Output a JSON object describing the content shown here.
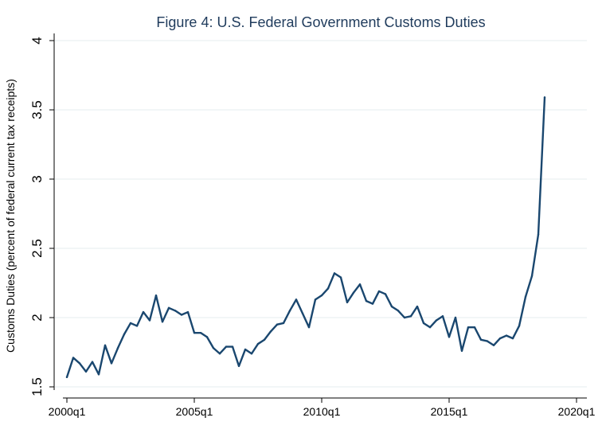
{
  "chart_data": {
    "type": "line",
    "title": "Figure 4: U.S. Federal Government Customs Duties",
    "ylabel": "Customs Duties (percent of federal current tax receipts)",
    "xlabel": "",
    "xlim": [
      "2000q1",
      "2020q1"
    ],
    "ylim": [
      1.5,
      4
    ],
    "xticks": [
      "2000q1",
      "2005q1",
      "2010q1",
      "2015q1",
      "2020q1"
    ],
    "yticks": [
      "1.5",
      "2",
      "2.5",
      "3",
      "3.5",
      "4"
    ],
    "grid": true,
    "line_color": "#1a476f",
    "series": [
      {
        "x": [
          "2000q1",
          "2000q2",
          "2000q3",
          "2000q4",
          "2001q1",
          "2001q2",
          "2001q3",
          "2001q4",
          "2002q1",
          "2002q2",
          "2002q3",
          "2002q4",
          "2003q1",
          "2003q2",
          "2003q3",
          "2003q4",
          "2004q1",
          "2004q2",
          "2004q3",
          "2004q4",
          "2005q1",
          "2005q2",
          "2005q3",
          "2005q4",
          "2006q1",
          "2006q2",
          "2006q3",
          "2006q4",
          "2007q1",
          "2007q2",
          "2007q3",
          "2007q4",
          "2008q1",
          "2008q2",
          "2008q3",
          "2008q4",
          "2009q1",
          "2009q2",
          "2009q3",
          "2009q4",
          "2010q1",
          "2010q2",
          "2010q3",
          "2010q4",
          "2011q1",
          "2011q2",
          "2011q3",
          "2011q4",
          "2012q1",
          "2012q2",
          "2012q3",
          "2012q4",
          "2013q1",
          "2013q2",
          "2013q3",
          "2013q4",
          "2014q1",
          "2014q2",
          "2014q3",
          "2014q4",
          "2015q1",
          "2015q2",
          "2015q3",
          "2015q4",
          "2016q1",
          "2016q2",
          "2016q3",
          "2016q4",
          "2017q1",
          "2017q2",
          "2017q3",
          "2017q4",
          "2018q1",
          "2018q2",
          "2018q3",
          "2018q4"
        ],
        "values": [
          1.57,
          1.71,
          1.67,
          1.61,
          1.68,
          1.59,
          1.8,
          1.67,
          1.78,
          1.88,
          1.96,
          1.94,
          2.04,
          1.98,
          2.16,
          1.97,
          2.07,
          2.05,
          2.02,
          2.04,
          1.89,
          1.89,
          1.86,
          1.78,
          1.74,
          1.79,
          1.79,
          1.65,
          1.77,
          1.74,
          1.81,
          1.84,
          1.9,
          1.95,
          1.96,
          2.05,
          2.13,
          2.03,
          1.93,
          2.13,
          2.16,
          2.21,
          2.32,
          2.29,
          2.11,
          2.18,
          2.24,
          2.12,
          2.1,
          2.19,
          2.17,
          2.08,
          2.05,
          2.0,
          2.01,
          2.08,
          1.96,
          1.93,
          1.98,
          2.01,
          1.86,
          2.0,
          1.76,
          1.93,
          1.93,
          1.84,
          1.83,
          1.8,
          1.85,
          1.87,
          1.85,
          1.94,
          2.15,
          2.3,
          2.6,
          3.59
        ]
      }
    ]
  }
}
